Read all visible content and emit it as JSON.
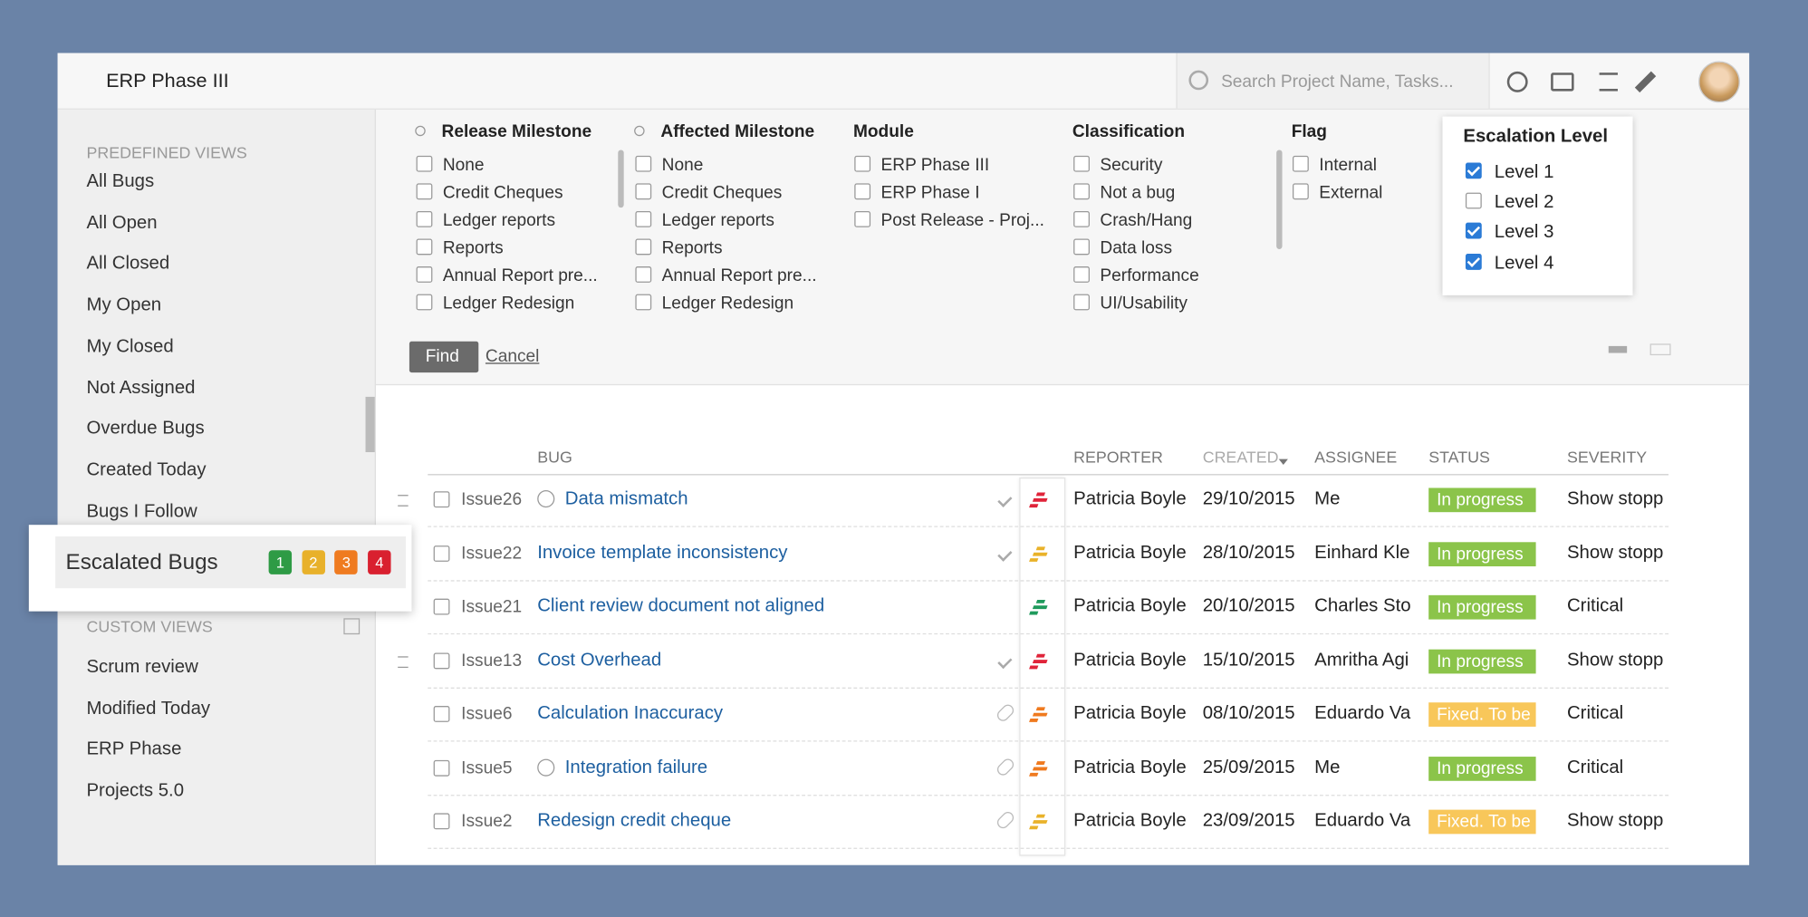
{
  "header": {
    "title": "ERP Phase III",
    "search_placeholder": "Search Project Name, Tasks..."
  },
  "sidebar": {
    "predefined_heading": "PREDEFINED VIEWS",
    "predefined_views": [
      "All Bugs",
      "All Open",
      "All Closed",
      "My Open",
      "My Closed",
      "Not Assigned",
      "Overdue Bugs",
      "Created Today",
      "Bugs I Follow"
    ],
    "escalated": {
      "label": "Escalated Bugs",
      "levels": [
        "1",
        "2",
        "3",
        "4"
      ]
    },
    "custom_heading": "CUSTOM VIEWS",
    "custom_views": [
      "Scrum review",
      "Modified Today",
      "ERP Phase",
      "Projects 5.0"
    ]
  },
  "filters": [
    {
      "title": "Release Milestone",
      "options": [
        "None",
        "Credit Cheques",
        "Ledger reports",
        "Reports",
        "Annual Report pre...",
        "Ledger Redesign"
      ]
    },
    {
      "title": "Affected Milestone",
      "options": [
        "None",
        "Credit Cheques",
        "Ledger reports",
        "Reports",
        "Annual Report pre...",
        "Ledger Redesign"
      ]
    },
    {
      "title": "Module",
      "options": [
        "ERP Phase III",
        "ERP Phase I",
        "Post Release - Proj..."
      ]
    },
    {
      "title": "Classification",
      "options": [
        "Security",
        "Not a bug",
        "Crash/Hang",
        "Data loss",
        "Performance",
        "UI/Usability"
      ]
    },
    {
      "title": "Flag",
      "options": [
        "Internal",
        "External"
      ]
    }
  ],
  "escalation": {
    "title": "Escalation Level",
    "options": [
      {
        "label": "Level 1",
        "checked": true
      },
      {
        "label": "Level 2",
        "checked": false
      },
      {
        "label": "Level 3",
        "checked": true
      },
      {
        "label": "Level 4",
        "checked": true
      }
    ]
  },
  "buttons": {
    "find": "Find",
    "cancel": "Cancel"
  },
  "table": {
    "columns": [
      "BUG",
      "REPORTER",
      "CREATED",
      "ASSIGNEE",
      "STATUS",
      "SEVERITY"
    ],
    "rows": [
      {
        "id": "Issue26",
        "title": "Data mismatch",
        "reporter": "Patricia Boyle",
        "created": "29/10/2015",
        "assignee": "Me",
        "status": "In progress",
        "severity": "Show stopp"
      },
      {
        "id": "Issue22",
        "title": "Invoice template inconsistency",
        "reporter": "Patricia Boyle",
        "created": "28/10/2015",
        "assignee": "Einhard Kle",
        "status": "In progress",
        "severity": "Show stopp"
      },
      {
        "id": "Issue21",
        "title": "Client review document not aligned",
        "reporter": "Patricia Boyle",
        "created": "20/10/2015",
        "assignee": "Charles Sto",
        "status": "In progress",
        "severity": "Critical"
      },
      {
        "id": "Issue13",
        "title": "Cost Overhead",
        "reporter": "Patricia Boyle",
        "created": "15/10/2015",
        "assignee": "Amritha Agi",
        "status": "In progress",
        "severity": "Show stopp"
      },
      {
        "id": "Issue6",
        "title": "Calculation Inaccuracy",
        "reporter": "Patricia Boyle",
        "created": "08/10/2015",
        "assignee": "Eduardo Va",
        "status": "Fixed. To be",
        "severity": "Critical"
      },
      {
        "id": "Issue5",
        "title": "Integration failure",
        "reporter": "Patricia Boyle",
        "created": "25/09/2015",
        "assignee": "Me",
        "status": "In progress",
        "severity": "Critical"
      },
      {
        "id": "Issue2",
        "title": "Redesign credit cheque",
        "reporter": "Patricia Boyle",
        "created": "23/09/2015",
        "assignee": "Eduardo Va",
        "status": "Fixed. To be",
        "severity": "Show stopp"
      }
    ]
  }
}
